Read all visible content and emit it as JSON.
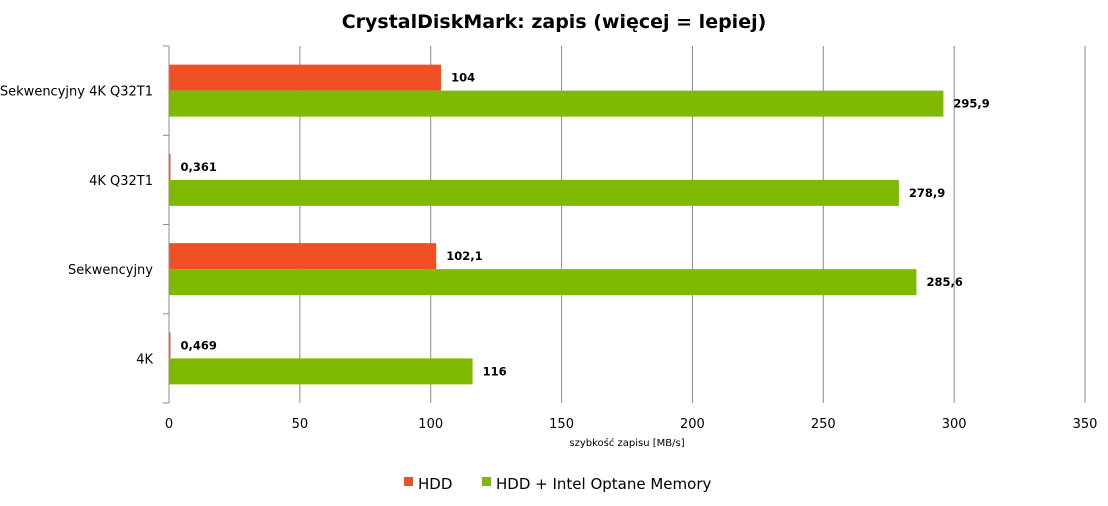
{
  "chart_data": {
    "type": "bar",
    "orientation": "horizontal",
    "title": "CrystalDiskMark: zapis (więcej = lepiej)",
    "xlabel": "szybkość zapisu [MB/s]",
    "ylabel": "",
    "xlim": [
      0,
      350
    ],
    "xticks": [
      "0",
      "50",
      "100",
      "150",
      "200",
      "250",
      "300",
      "350"
    ],
    "xtick_values": [
      0,
      50,
      100,
      150,
      200,
      250,
      300,
      350
    ],
    "grid": true,
    "legend_position": "bottom",
    "categories": [
      "Sekwencyjny 4K Q32T1",
      "4K Q32T1",
      "Sekwencyjny",
      "4K"
    ],
    "series": [
      {
        "name": "HDD",
        "color": "#f05023",
        "values": [
          104,
          0.361,
          102.1,
          0.469
        ],
        "labels": [
          "104",
          "0,361",
          "102,1",
          "0,469"
        ]
      },
      {
        "name": "HDD + Intel Optane Memory",
        "color": "#7fba00",
        "values": [
          295.9,
          278.9,
          285.6,
          116
        ],
        "labels": [
          "295,9",
          "278,9",
          "285,6",
          "116"
        ]
      }
    ]
  }
}
